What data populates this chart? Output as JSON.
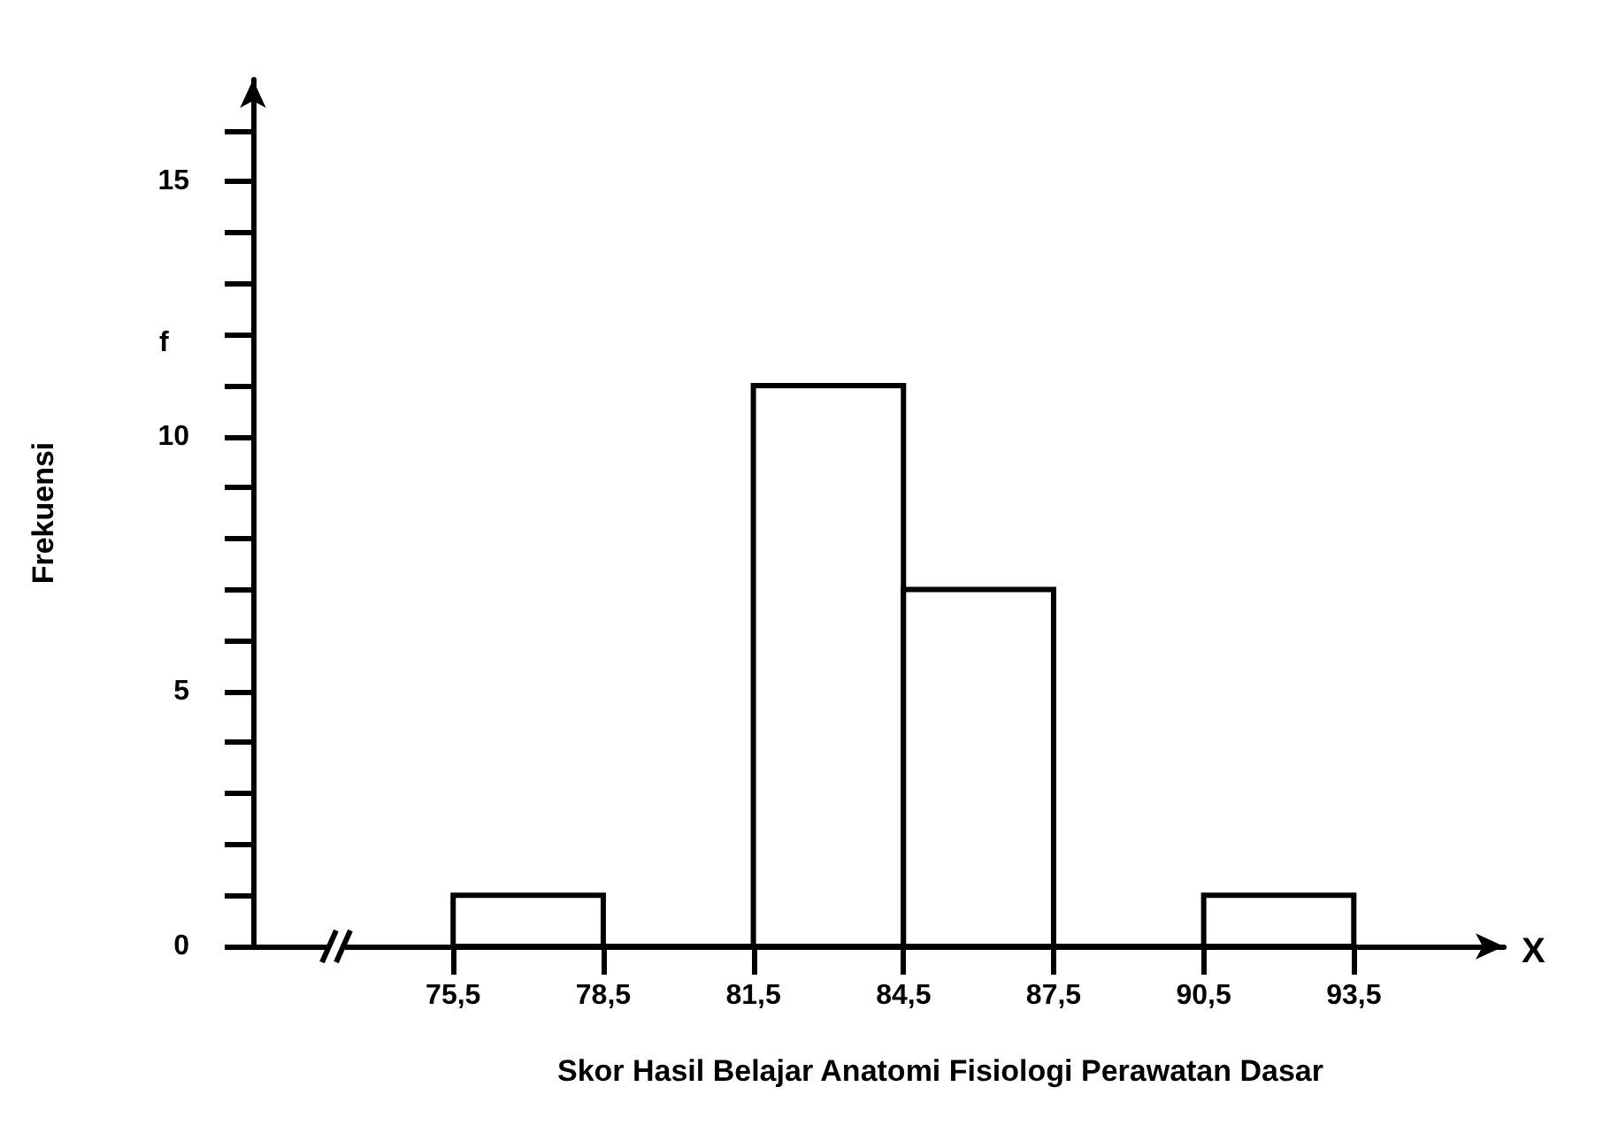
{
  "chart_data": {
    "type": "histogram",
    "xlabel": "Skor Hasil Belajar Anatomi Fisiologi Perawatan Dasar",
    "ylabel": "Frekuensi",
    "bins": [
      75.5,
      78.5,
      81.5,
      84.5,
      87.5,
      90.5,
      93.5
    ],
    "values": [
      1,
      0,
      11,
      7,
      0,
      1
    ],
    "color": "#ffffff",
    "xlim": [
      71.5,
      96.5
    ],
    "xticks": [
      {
        "value": 75.5,
        "label": "75,5"
      },
      {
        "value": 78.5,
        "label": "78,5"
      },
      {
        "value": 81.5,
        "label": "81,5"
      },
      {
        "value": 84.5,
        "label": "84,5"
      },
      {
        "value": 87.5,
        "label": "87,5"
      },
      {
        "value": 90.5,
        "label": "90,5"
      },
      {
        "value": 93.5,
        "label": "93,5"
      }
    ],
    "ylim": [
      0,
      17
    ],
    "yticks": [
      0,
      {
        "value": 1,
        "label": null
      },
      {
        "value": 2,
        "label": null
      },
      {
        "value": 3,
        "label": null
      },
      {
        "value": 4,
        "label": null
      },
      5,
      {
        "value": 6,
        "label": null
      },
      {
        "value": 7,
        "label": null
      },
      {
        "value": 8,
        "label": null
      },
      {
        "value": 9,
        "label": null
      },
      10,
      {
        "value": 11,
        "label": null
      },
      {
        "value": 12,
        "label": null
      },
      {
        "value": 13,
        "label": null
      },
      {
        "value": 14,
        "label": null
      },
      15,
      {
        "value": 16,
        "label": null
      }
    ],
    "annotations": [
      "f",
      "X"
    ],
    "grid": false
  }
}
